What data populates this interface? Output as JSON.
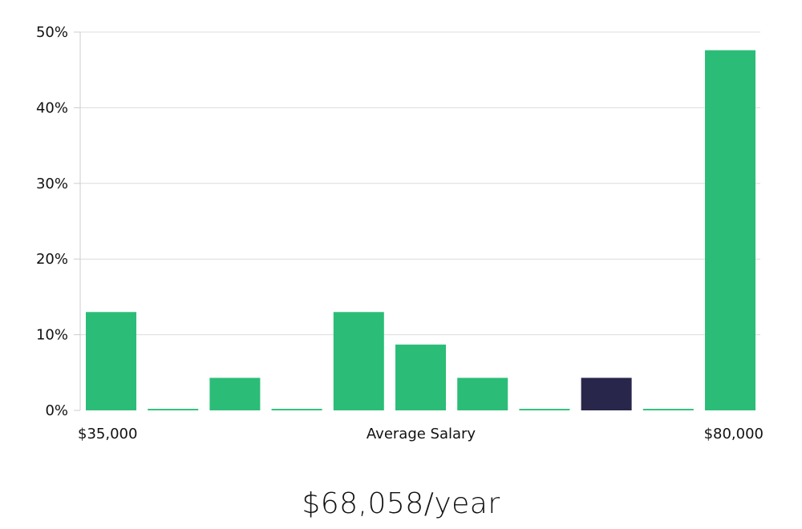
{
  "chart_data": {
    "type": "bar",
    "xlabel": "Average Salary",
    "x_range_labels": [
      "$35,000",
      "$80,000"
    ],
    "y_tick_labels": [
      "0%",
      "10%",
      "20%",
      "30%",
      "40%",
      "50%"
    ],
    "ylim": [
      0,
      50
    ],
    "grid": true,
    "values": [
      13.0,
      0.2,
      4.3,
      0.2,
      13.0,
      8.7,
      4.3,
      0.2,
      4.3,
      0.2,
      47.6
    ],
    "highlight_index": 8,
    "colors": {
      "bar": "#2bbd77",
      "highlight": "#28264a",
      "grid": "#dcdcdc",
      "axis": "#cccccc"
    }
  },
  "summary": {
    "value_text": "$68,058/year"
  }
}
